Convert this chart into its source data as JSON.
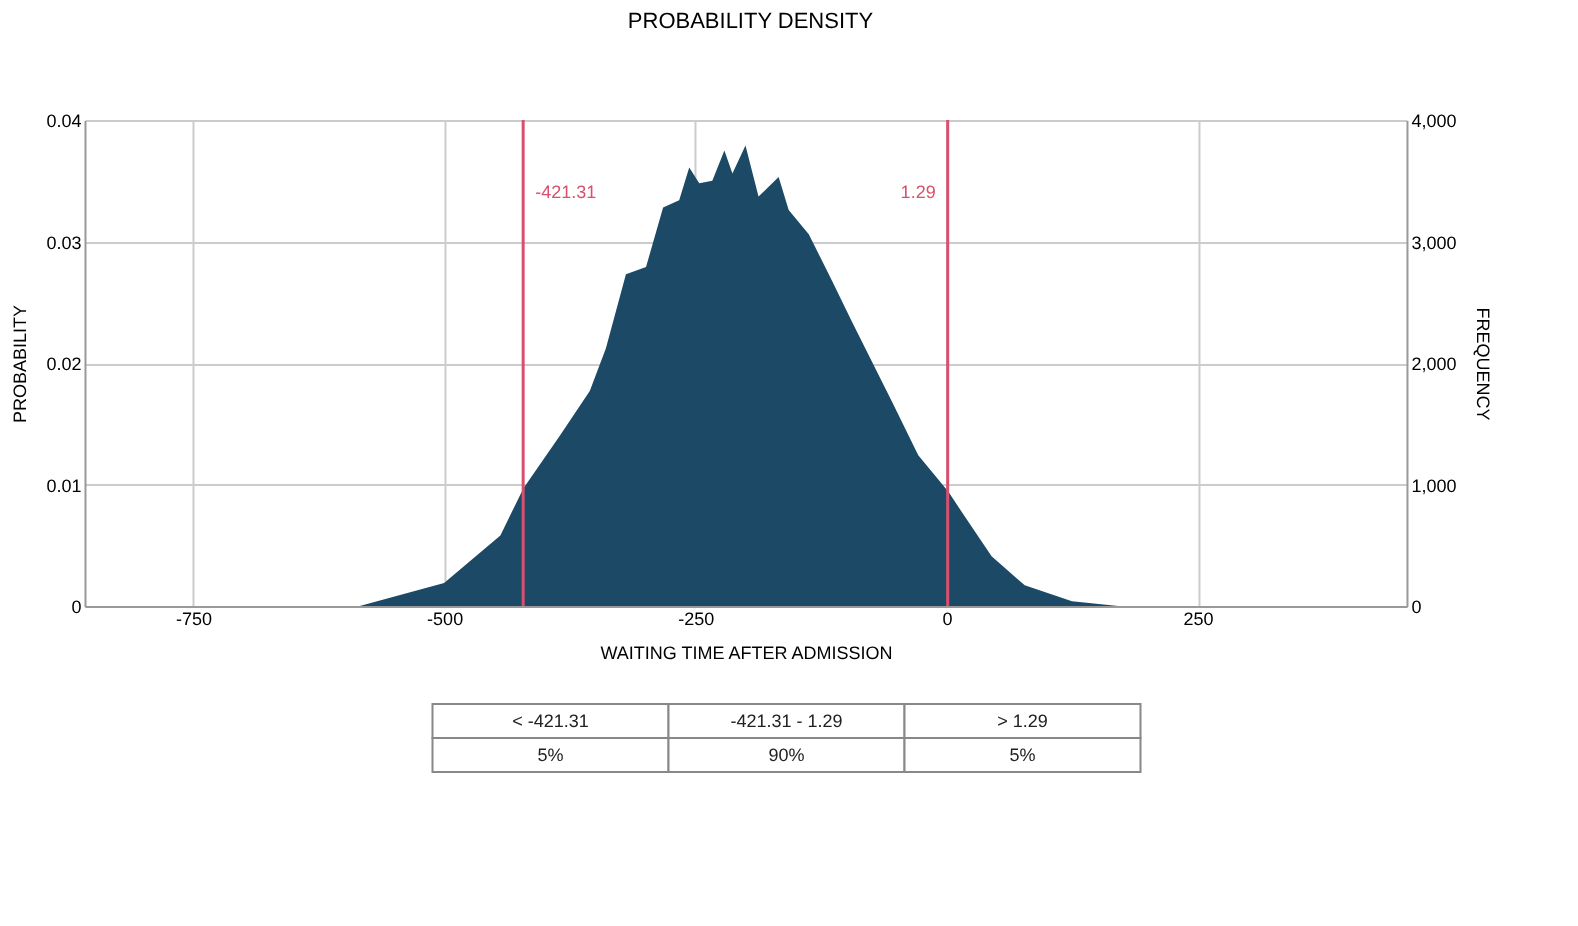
{
  "chart_data": {
    "type": "area",
    "title": "PROBABILITY DENSITY",
    "xlabel": "WAITING TIME AFTER ADMISSION",
    "ylabel": "PROBABILITY",
    "y2label": "FREQUENCY",
    "x": [
      -584,
      -500,
      -444,
      -421,
      -385,
      -355,
      -339,
      -319,
      -299,
      -282,
      -266,
      -256,
      -246,
      -233,
      -221,
      -213,
      -200,
      -187,
      -167,
      -157,
      -137,
      -114,
      -94,
      -54,
      -28,
      2,
      18,
      45,
      78,
      125,
      171
    ],
    "series": [
      {
        "color": "#1c4966",
        "values": [
          0,
          0.0019,
          0.0058,
          0.0097,
          0.014,
          0.0177,
          0.0212,
          0.0273,
          0.0279,
          0.0328,
          0.0334,
          0.0361,
          0.0348,
          0.035,
          0.0375,
          0.0356,
          0.0379,
          0.0337,
          0.0353,
          0.0326,
          0.0306,
          0.0268,
          0.0234,
          0.0168,
          0.0124,
          0.0094,
          0.0074,
          0.0041,
          0.0017,
          0.0004,
          0
        ]
      }
    ],
    "xlim": [
      -858,
      458
    ],
    "xticks": [
      -750,
      -500,
      -250,
      0,
      250
    ],
    "ylim": [
      0,
      0.04
    ],
    "yticks": [
      0,
      0.01,
      0.02,
      0.03,
      0.04
    ],
    "y2lim": [
      0,
      4000
    ],
    "y2ticks": [
      0,
      {
        "value": 1000,
        "label": "1,000"
      },
      {
        "value": 2000,
        "label": "2,000"
      },
      {
        "value": 3000,
        "label": "3,000"
      },
      {
        "value": 4000,
        "label": "4,000"
      }
    ],
    "ref_lines": [
      {
        "axis": "x",
        "value": -421.31,
        "label": "-421.31",
        "color": "#d9506e"
      },
      {
        "axis": "x",
        "value": 1.29,
        "label": "1.29",
        "color": "#d9506e"
      }
    ],
    "annotations": [
      "< -421.31",
      "-421.31 - 1.29",
      "> 1.29",
      "5%",
      "90%",
      "5%"
    ],
    "grid": true
  }
}
